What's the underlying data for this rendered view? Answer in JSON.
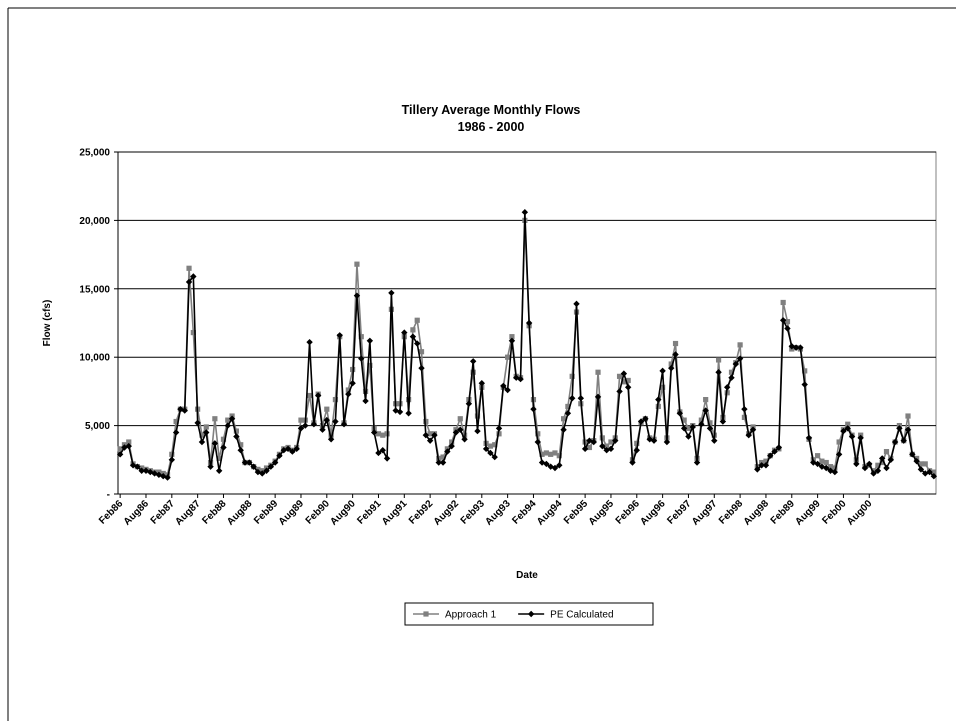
{
  "chart_data": {
    "type": "line",
    "title": "Tillery Average Monthly Flows",
    "subtitle": "1986 - 2000",
    "x_label": "Date",
    "y_label": "Flow (cfs)",
    "ylim": [
      0,
      25000
    ],
    "yticks": [
      {
        "value": 0,
        "label": "-"
      },
      {
        "value": 5000,
        "label": "5,000"
      },
      {
        "value": 10000,
        "label": "10,000"
      },
      {
        "value": 15000,
        "label": "15,000"
      },
      {
        "value": 20000,
        "label": "20,000"
      },
      {
        "value": 25000,
        "label": "25,000"
      }
    ],
    "grid": true,
    "legend": "bottom",
    "categories": [
      "Feb86",
      null,
      null,
      null,
      null,
      null,
      "Aug86",
      null,
      null,
      null,
      null,
      null,
      "Feb87",
      null,
      null,
      null,
      null,
      null,
      "Aug87",
      null,
      null,
      null,
      null,
      null,
      "Feb88",
      null,
      null,
      null,
      null,
      null,
      "Aug88",
      null,
      null,
      null,
      null,
      null,
      "Feb89",
      null,
      null,
      null,
      null,
      null,
      "Aug89",
      null,
      null,
      null,
      null,
      null,
      "Feb90",
      null,
      null,
      null,
      null,
      null,
      "Aug90",
      null,
      null,
      null,
      null,
      null,
      "Feb91",
      null,
      null,
      null,
      null,
      null,
      "Aug91",
      null,
      null,
      null,
      null,
      null,
      "Feb92",
      null,
      null,
      null,
      null,
      null,
      "Aug92",
      null,
      null,
      null,
      null,
      null,
      "Feb93",
      null,
      null,
      null,
      null,
      null,
      "Aug93",
      null,
      null,
      null,
      null,
      null,
      "Feb94",
      null,
      null,
      null,
      null,
      null,
      "Aug94",
      null,
      null,
      null,
      null,
      null,
      "Feb95",
      null,
      null,
      null,
      null,
      null,
      "Aug95",
      null,
      null,
      null,
      null,
      null,
      "Feb96",
      null,
      null,
      null,
      null,
      null,
      "Aug96",
      null,
      null,
      null,
      null,
      null,
      "Feb97",
      null,
      null,
      null,
      null,
      null,
      "Aug97",
      null,
      null,
      null,
      null,
      null,
      "Feb98",
      null,
      null,
      null,
      null,
      null,
      "Aug98",
      null,
      null,
      null,
      null,
      null,
      "Feb89",
      null,
      null,
      null,
      null,
      null,
      "Aug99",
      null,
      null,
      null,
      null,
      null,
      "Feb00",
      null,
      null,
      null,
      null,
      null,
      "Aug00",
      null,
      null,
      null,
      null,
      null,
      null,
      null,
      null,
      null,
      null,
      null,
      null,
      null,
      null,
      null
    ],
    "series": [
      {
        "name": "Approach 1",
        "color": "#808080",
        "marker": "square",
        "values": [
          3300,
          3600,
          3800,
          2200,
          2000,
          1900,
          1800,
          1700,
          1600,
          1600,
          1500,
          1400,
          2900,
          5300,
          6200,
          6200,
          16500,
          11800,
          6200,
          4300,
          4900,
          2300,
          5500,
          2600,
          4000,
          5400,
          5700,
          4600,
          3600,
          2300,
          2300,
          2000,
          1800,
          1700,
          1900,
          2100,
          2400,
          2900,
          3300,
          3400,
          3200,
          3400,
          5400,
          5400,
          7200,
          5200,
          7300,
          5000,
          6200,
          4300,
          6900,
          11500,
          5200,
          7600,
          9100,
          16800,
          11500,
          7500,
          9400,
          4800,
          4400,
          4300,
          4400,
          13500,
          6600,
          6600,
          11500,
          6900,
          12000,
          12700,
          10400,
          5300,
          4400,
          4400,
          2600,
          2700,
          3300,
          3800,
          4700,
          5500,
          4300,
          6900,
          8900,
          5700,
          7800,
          3700,
          3500,
          3600,
          4400,
          7800,
          10000,
          11500,
          8600,
          8500,
          20000,
          12300,
          6900,
          4400,
          2900,
          3000,
          2900,
          3000,
          2800,
          5500,
          6400,
          8600,
          13300,
          6600,
          3800,
          3400,
          3900,
          8900,
          4100,
          3500,
          3800,
          4100,
          8600,
          8200,
          8300,
          2500,
          3700,
          5200,
          5500,
          4100,
          4000,
          6400,
          7800,
          4100,
          9500,
          11000,
          6000,
          5400,
          4800,
          5000,
          2600,
          5400,
          6900,
          5200,
          4300,
          9800,
          5600,
          7400,
          8900,
          9600,
          10900,
          5600,
          4400,
          4900,
          2000,
          2300,
          2400,
          2800,
          3200,
          3300,
          14000,
          12600,
          10600,
          10700,
          10600,
          9000,
          4000,
          2500,
          2800,
          2400,
          2300,
          2000,
          1900,
          3800,
          4700,
          5100,
          4300,
          2500,
          4300,
          2000,
          2100,
          1700,
          2100,
          2300,
          3100,
          2600,
          3800,
          5000,
          3900,
          5700,
          2900,
          2600,
          2200,
          2200,
          1700,
          1600
        ]
      },
      {
        "name": "PE Calculated",
        "color": "#000000",
        "marker": "diamond",
        "values": [
          2900,
          3400,
          3500,
          2100,
          2000,
          1700,
          1700,
          1600,
          1500,
          1400,
          1300,
          1200,
          2500,
          4500,
          6200,
          6100,
          15500,
          15900,
          5200,
          3800,
          4500,
          2000,
          3700,
          1700,
          3400,
          5000,
          5500,
          4200,
          3200,
          2300,
          2300,
          2000,
          1600,
          1500,
          1700,
          2000,
          2300,
          2800,
          3200,
          3300,
          3100,
          3300,
          4800,
          5000,
          11100,
          5100,
          7200,
          4700,
          5400,
          4000,
          5300,
          11600,
          5100,
          7300,
          8100,
          14500,
          9900,
          6800,
          11200,
          4500,
          3000,
          3200,
          2600,
          14700,
          6100,
          6000,
          11800,
          5900,
          11500,
          11000,
          9200,
          4300,
          3900,
          4300,
          2300,
          2300,
          3100,
          3500,
          4500,
          4700,
          4000,
          6600,
          9700,
          4600,
          8100,
          3300,
          3000,
          2700,
          4800,
          7900,
          7600,
          11200,
          8500,
          8400,
          20600,
          12500,
          6200,
          3800,
          2300,
          2200,
          2000,
          1900,
          2100,
          4700,
          5900,
          7000,
          13900,
          7000,
          3300,
          3900,
          3800,
          7100,
          3500,
          3200,
          3300,
          3900,
          7500,
          8800,
          7800,
          2300,
          3200,
          5300,
          5500,
          4000,
          3900,
          6900,
          9000,
          3800,
          9200,
          10200,
          5900,
          4800,
          4200,
          4900,
          2300,
          5100,
          6100,
          4800,
          3900,
          8900,
          5300,
          7800,
          8500,
          9500,
          9900,
          6200,
          4300,
          4700,
          1800,
          2100,
          2100,
          2800,
          3100,
          3400,
          12700,
          12100,
          10800,
          10700,
          10700,
          8000,
          4100,
          2300,
          2200,
          2000,
          1900,
          1700,
          1600,
          2900,
          4600,
          4800,
          4200,
          2200,
          4100,
          1900,
          2200,
          1500,
          1700,
          2600,
          1900,
          2500,
          3800,
          4800,
          3900,
          4700,
          2900,
          2400,
          1800,
          1500,
          1600,
          1300
        ]
      }
    ]
  }
}
